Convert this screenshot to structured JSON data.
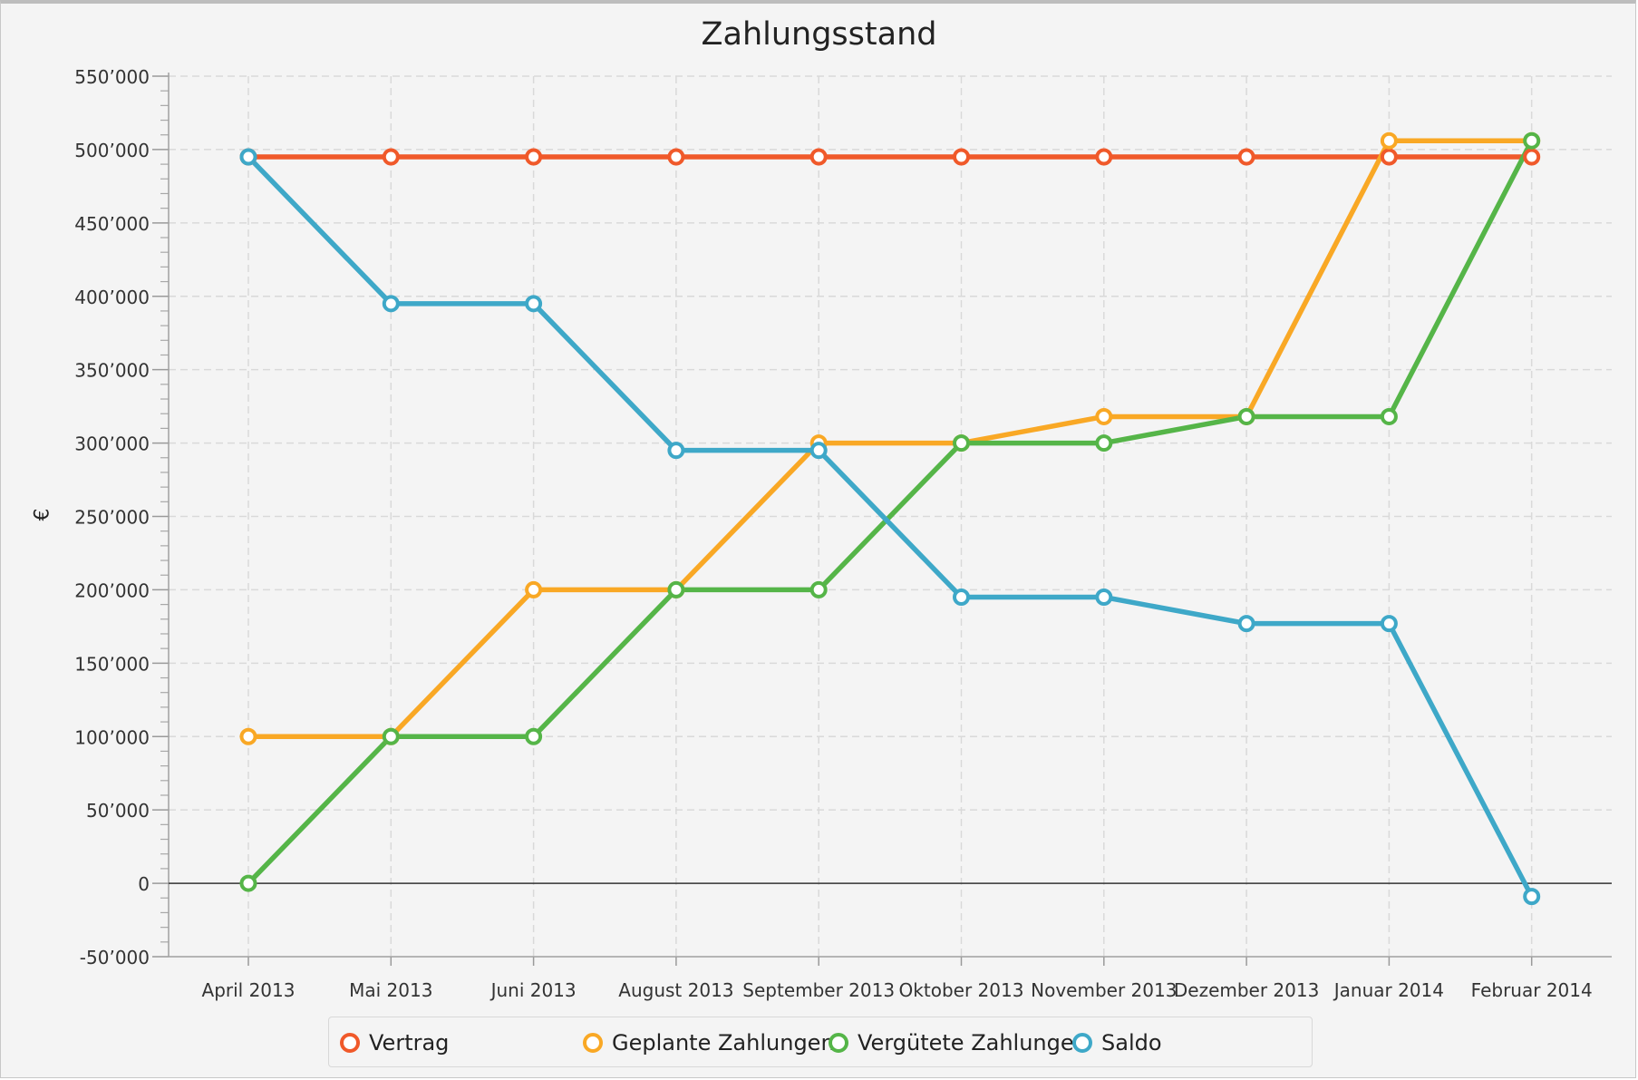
{
  "chart_data": {
    "type": "line",
    "title": "Zahlungsstand",
    "ylabel": "€",
    "xlabel": "",
    "ylim": [
      -50000,
      550000
    ],
    "ytick_step": 50000,
    "ytick_labels": [
      "-50’000",
      "0",
      "50’000",
      "100’000",
      "150’000",
      "200’000",
      "250’000",
      "300’000",
      "350’000",
      "400’000",
      "450’000",
      "500’000",
      "550’000"
    ],
    "grid": true,
    "legend_position": "bottom",
    "categories": [
      "April 2013",
      "Mai 2013",
      "Juni 2013",
      "August 2013",
      "September 2013",
      "Oktober 2013",
      "November 2013",
      "Dezember 2013",
      "Januar 2014",
      "Februar 2014"
    ],
    "series": [
      {
        "name": "Vertrag",
        "color": "#f0592a",
        "values": [
          495000,
          495000,
          495000,
          495000,
          495000,
          495000,
          495000,
          495000,
          495000,
          495000
        ]
      },
      {
        "name": "Geplante Zahlungen",
        "color": "#f9a825",
        "values": [
          100000,
          100000,
          200000,
          200000,
          300000,
          300000,
          318000,
          318000,
          506000,
          506000
        ]
      },
      {
        "name": "Vergütete Zahlungen",
        "color": "#55b548",
        "values": [
          0,
          100000,
          100000,
          200000,
          200000,
          300000,
          300000,
          318000,
          318000,
          506000
        ]
      },
      {
        "name": "Saldo",
        "color": "#3ea8c8",
        "values": [
          495000,
          395000,
          395000,
          295000,
          295000,
          195000,
          195000,
          177000,
          177000,
          -9000
        ]
      }
    ]
  }
}
